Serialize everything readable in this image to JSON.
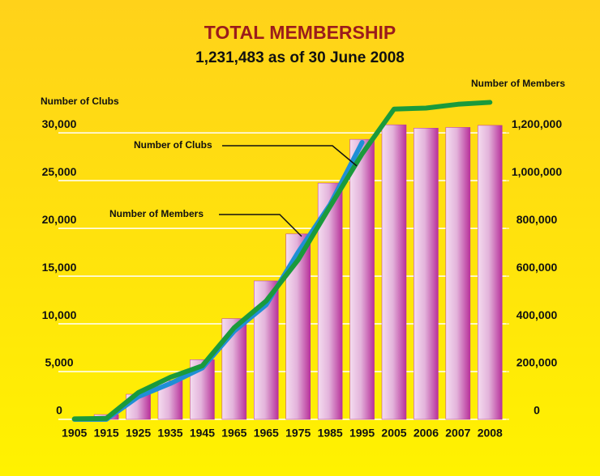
{
  "chart_data": {
    "type": "bar",
    "title": "TOTAL MEMBERSHIP",
    "subtitle": "1,231,483 as of 30 June 2008",
    "y_label": "Number of Clubs",
    "y2_label": "Number of Members",
    "categories": [
      "1905",
      "1915",
      "1925",
      "1935",
      "1945",
      "1965",
      "1965",
      "1975",
      "1985",
      "1995",
      "2005",
      "2006",
      "2007",
      "2008"
    ],
    "series": [
      {
        "name": "Number of Members",
        "type": "bar",
        "axis": "y2",
        "color": "#b8309a",
        "values": [
          0,
          20000,
          105000,
          162000,
          250000,
          422000,
          580000,
          777000,
          990000,
          1173000,
          1234000,
          1220000,
          1223000,
          1231483
        ]
      },
      {
        "name": "Number of Members",
        "type": "line",
        "axis": "y2",
        "color": "#1f8fd6",
        "values": [
          0,
          0,
          95000,
          150000,
          215000,
          370000,
          480000,
          700000,
          900000,
          1160000,
          null,
          null,
          null,
          null
        ]
      },
      {
        "name": "Number of Clubs",
        "type": "line",
        "axis": "y",
        "color": "#1a9a3c",
        "values": [
          50,
          100,
          2800,
          4400,
          5600,
          9600,
          12400,
          16700,
          22300,
          27800,
          32500,
          32600,
          33000,
          33200
        ]
      }
    ],
    "annotations": [
      "Number of Clubs",
      "Number of Members"
    ],
    "ylim": [
      0,
      34000
    ],
    "yticks": [
      {
        "value": 0,
        "label": "0"
      },
      {
        "value": 5000,
        "label": "5,000"
      },
      {
        "value": 10000,
        "label": "10,000"
      },
      {
        "value": 15000,
        "label": "15,000"
      },
      {
        "value": 20000,
        "label": "20,000"
      },
      {
        "value": 25000,
        "label": "25,000"
      },
      {
        "value": 30000,
        "label": "30,000"
      }
    ],
    "y2lim": [
      0,
      1360000
    ],
    "y2ticks": [
      {
        "value": 0,
        "label": "0"
      },
      {
        "value": 200000,
        "label": "200,000"
      },
      {
        "value": 400000,
        "label": "400,000"
      },
      {
        "value": 600000,
        "label": "600,000"
      },
      {
        "value": 800000,
        "label": "800,000"
      },
      {
        "value": 1000000,
        "label": "1,000,000"
      },
      {
        "value": 1200000,
        "label": "1,200,000"
      }
    ],
    "grid": true
  }
}
